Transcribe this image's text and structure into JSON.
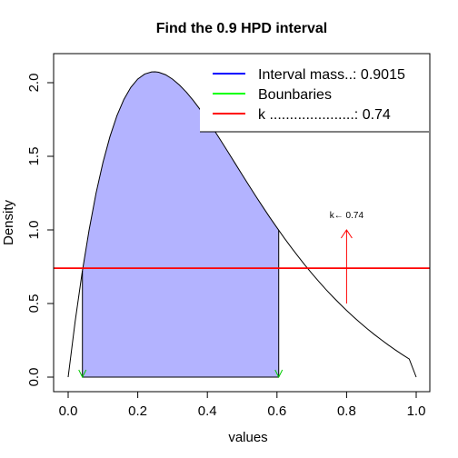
{
  "chart_data": {
    "type": "area",
    "title": "Find the  0.9 HPD interval",
    "xlabel": "values",
    "ylabel": "Density",
    "xlim": [
      0,
      1
    ],
    "ylim": [
      0,
      2.2
    ],
    "x_ticks": [
      {
        "value": 0.0,
        "label": "0.0"
      },
      {
        "value": 0.2,
        "label": "0.2"
      },
      {
        "value": 0.4,
        "label": "0.4"
      },
      {
        "value": 0.6,
        "label": "0.6"
      },
      {
        "value": 0.8,
        "label": "0.8"
      },
      {
        "value": 1.0,
        "label": "1.0"
      }
    ],
    "y_ticks": [
      {
        "value": 0.0,
        "label": "0.0"
      },
      {
        "value": 0.5,
        "label": "0.5"
      },
      {
        "value": 1.0,
        "label": "1.0"
      },
      {
        "value": 1.5,
        "label": "1.5"
      },
      {
        "value": 2.0,
        "label": "2.0"
      }
    ],
    "density_curve": {
      "color": "#000000",
      "x": [
        0.0,
        0.02,
        0.04,
        0.06,
        0.08,
        0.1,
        0.12,
        0.14,
        0.16,
        0.18,
        0.2,
        0.22,
        0.24,
        0.25,
        0.26,
        0.28,
        0.3,
        0.32,
        0.34,
        0.36,
        0.38,
        0.4,
        0.42,
        0.44,
        0.46,
        0.48,
        0.5,
        0.52,
        0.54,
        0.56,
        0.58,
        0.6,
        0.62,
        0.64,
        0.66,
        0.68,
        0.7,
        0.72,
        0.74,
        0.76,
        0.78,
        0.8,
        0.82,
        0.84,
        0.86,
        0.88,
        0.9,
        0.92,
        0.94,
        0.96,
        0.98,
        1.0
      ],
      "y": [
        0.0,
        0.376,
        0.708,
        0.997,
        1.248,
        1.458,
        1.633,
        1.775,
        1.886,
        1.968,
        2.025,
        2.059,
        2.073,
        2.074,
        2.071,
        2.054,
        2.024,
        1.984,
        1.935,
        1.878,
        1.815,
        1.747,
        1.676,
        1.602,
        1.527,
        1.451,
        1.375,
        1.3,
        1.226,
        1.154,
        1.083,
        1.015,
        0.948,
        0.884,
        0.822,
        0.762,
        0.705,
        0.65,
        0.597,
        0.547,
        0.499,
        0.453,
        0.409,
        0.367,
        0.327,
        0.289,
        0.253,
        0.218,
        0.185,
        0.153,
        0.123,
        0.0
      ]
    },
    "hpd_interval": {
      "lower": 0.041,
      "upper": 0.605,
      "fill_color": "#b3b3ff",
      "boundary_color": "#00cc00"
    },
    "k_line": {
      "y": 0.74,
      "color": "#ff0000"
    },
    "annotation": {
      "text": "k← 0.74",
      "arrow_x": 0.8,
      "arrow_from_y": 0.5,
      "arrow_to_y": 1.0,
      "color": "#ff0000"
    },
    "legend": {
      "placement": "top-right",
      "entries": [
        {
          "label": "Interval mass..: 0.9015",
          "color": "#0000ff"
        },
        {
          "label": "Bounbaries",
          "color": "#00ff00"
        },
        {
          "label": "k .....................: 0.74",
          "color": "#ff0000"
        }
      ]
    },
    "grid": false
  }
}
